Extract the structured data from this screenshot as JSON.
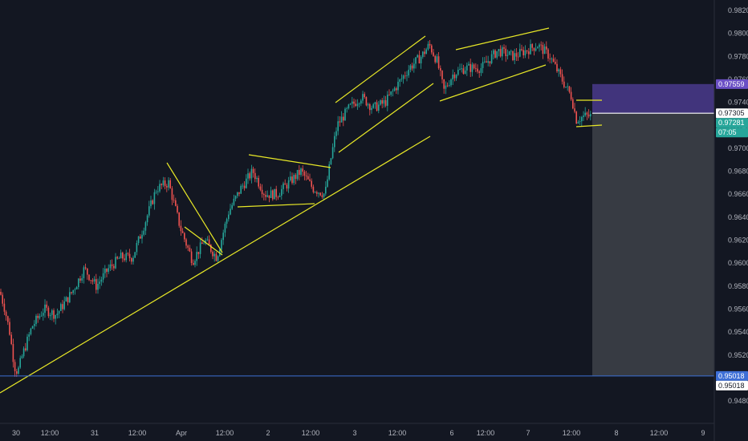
{
  "colors": {
    "background": "#131722",
    "grid": "#1e222d",
    "up": "#26a69a",
    "down": "#ef5350",
    "trendline": "#e8e827",
    "stop_zone": "#4a3a8c",
    "target_zone": "#3c3f47",
    "support_line": "#3d6fd6",
    "axis_text": "#b2b5be",
    "current_price_line": "#ffffff",
    "badge_purple": "#6a4fc4",
    "badge_teal": "#26a69a",
    "badge_blue": "#3d6fd6"
  },
  "chart_data": {
    "type": "candlestick",
    "title": "",
    "x_tick_labels": [
      "30",
      "12:00",
      "31",
      "12:00",
      "Apr",
      "12:00",
      "2",
      "12:00",
      "3",
      "12:00",
      "6",
      "12:00",
      "7",
      "12:00",
      "8",
      "12:00",
      "9"
    ],
    "y_tick_labels": [
      "0.98200",
      "0.98000",
      "0.97800",
      "0.97600",
      "0.97400",
      "0.97200",
      "0.97000",
      "0.96800",
      "0.96600",
      "0.96400",
      "0.96200",
      "0.96000",
      "0.95800",
      "0.95600",
      "0.95400",
      "0.95200",
      "0.95000",
      "0.94800"
    ],
    "y_ticks": [
      0.982,
      0.98,
      0.978,
      0.976,
      0.974,
      0.972,
      0.97,
      0.968,
      0.966,
      0.964,
      0.962,
      0.96,
      0.958,
      0.956,
      0.954,
      0.952,
      0.95,
      0.948
    ],
    "ylim": [
      0.9475,
      0.9835
    ],
    "price_path": [
      [
        0,
        0.9575
      ],
      [
        6,
        0.956
      ],
      [
        12,
        0.954
      ],
      [
        18,
        0.951
      ],
      [
        22,
        0.9505
      ],
      [
        28,
        0.952
      ],
      [
        40,
        0.9545
      ],
      [
        55,
        0.956
      ],
      [
        70,
        0.9555
      ],
      [
        90,
        0.9575
      ],
      [
        105,
        0.9595
      ],
      [
        120,
        0.958
      ],
      [
        135,
        0.9595
      ],
      [
        150,
        0.9605
      ],
      [
        165,
        0.9605
      ],
      [
        178,
        0.963
      ],
      [
        195,
        0.9665
      ],
      [
        210,
        0.967
      ],
      [
        225,
        0.963
      ],
      [
        240,
        0.9602
      ],
      [
        255,
        0.962
      ],
      [
        270,
        0.9605
      ],
      [
        285,
        0.9645
      ],
      [
        300,
        0.9665
      ],
      [
        315,
        0.968
      ],
      [
        330,
        0.966
      ],
      [
        345,
        0.966
      ],
      [
        360,
        0.967
      ],
      [
        375,
        0.968
      ],
      [
        390,
        0.9665
      ],
      [
        405,
        0.966
      ],
      [
        412,
        0.969
      ],
      [
        420,
        0.972
      ],
      [
        435,
        0.9735
      ],
      [
        450,
        0.9745
      ],
      [
        465,
        0.9735
      ],
      [
        480,
        0.974
      ],
      [
        495,
        0.9755
      ],
      [
        510,
        0.977
      ],
      [
        525,
        0.978
      ],
      [
        535,
        0.979
      ],
      [
        545,
        0.9775
      ],
      [
        553,
        0.975
      ],
      [
        565,
        0.9765
      ],
      [
        580,
        0.977
      ],
      [
        600,
        0.977
      ],
      [
        620,
        0.9785
      ],
      [
        640,
        0.978
      ],
      [
        655,
        0.9785
      ],
      [
        670,
        0.979
      ],
      [
        685,
        0.978
      ],
      [
        700,
        0.976
      ],
      [
        712,
        0.9745
      ],
      [
        718,
        0.9725
      ],
      [
        728,
        0.9728
      ],
      [
        736,
        0.9728
      ]
    ],
    "last_price": 0.97305,
    "position": {
      "stop_top": 0.97559,
      "entry": 0.97305,
      "target": 0.95018,
      "current_price_label": "0.97305",
      "stop_label": "0.97559",
      "secondary_label": "0.97281",
      "timer_label": "07:05",
      "target_label_1": "0.95018",
      "target_label_2": "0.95018"
    },
    "grid": false,
    "legend": "none"
  }
}
